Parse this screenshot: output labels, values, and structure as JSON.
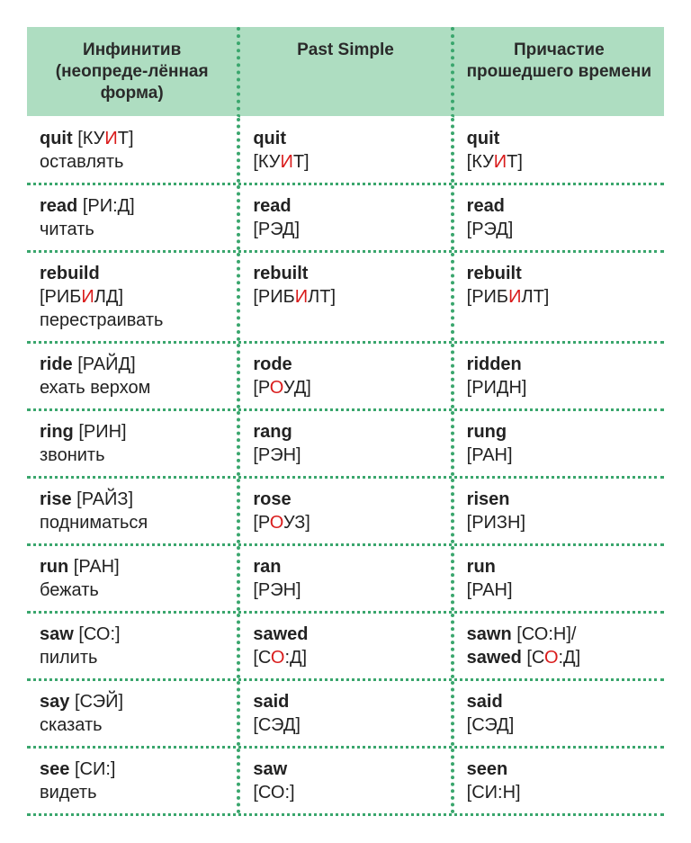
{
  "colors": {
    "header_bg": "#aeddc1",
    "dot_border": "#3aa66d",
    "stress": "#d91c1c",
    "text": "#222222",
    "background": "#ffffff"
  },
  "headers": {
    "col1": "Инфинитив (неопреде-лённая форма)",
    "col2": "Past Simple",
    "col3": "Причастие прошедшего времени"
  },
  "rows": [
    {
      "inf": {
        "word": "quit",
        "pron": [
          [
            "КУ",
            ""
          ],
          [
            "И",
            "stress"
          ],
          [
            "Т",
            ""
          ]
        ],
        "trans": "оставлять"
      },
      "past": {
        "word": "quit",
        "pron": [
          [
            "КУ",
            ""
          ],
          [
            "И",
            "stress"
          ],
          [
            "Т",
            ""
          ]
        ]
      },
      "pp": {
        "word": "quit",
        "pron": [
          [
            "КУ",
            ""
          ],
          [
            "И",
            "stress"
          ],
          [
            "Т",
            ""
          ]
        ]
      }
    },
    {
      "inf": {
        "word": "read",
        "pron": [
          [
            "РИ:Д",
            ""
          ]
        ],
        "trans": "читать"
      },
      "past": {
        "word": "read",
        "pron": [
          [
            "РЭД",
            ""
          ]
        ]
      },
      "pp": {
        "word": "read",
        "pron": [
          [
            "РЭД",
            ""
          ]
        ]
      }
    },
    {
      "inf": {
        "word": "rebuild",
        "pron": [
          [
            "РИБ",
            ""
          ],
          [
            "И",
            "stress"
          ],
          [
            "ЛД",
            ""
          ]
        ],
        "trans": " перестраивать",
        "pron_newline": true
      },
      "past": {
        "word": "rebuilt",
        "pron": [
          [
            "РИБ",
            ""
          ],
          [
            "И",
            "stress"
          ],
          [
            "ЛТ",
            ""
          ]
        ]
      },
      "pp": {
        "word": "rebuilt",
        "pron": [
          [
            "РИБ",
            ""
          ],
          [
            "И",
            "stress"
          ],
          [
            "ЛТ",
            ""
          ]
        ]
      }
    },
    {
      "inf": {
        "word": "ride",
        "pron": [
          [
            "РАЙД",
            ""
          ]
        ],
        "trans": "ехать верхом"
      },
      "past": {
        "word": "rode",
        "pron": [
          [
            "Р",
            ""
          ],
          [
            "О",
            "stress"
          ],
          [
            "УД",
            ""
          ]
        ]
      },
      "pp": {
        "word": "ridden",
        "pron": [
          [
            "РИДН",
            ""
          ]
        ]
      }
    },
    {
      "inf": {
        "word": "ring",
        "pron": [
          [
            "РИН",
            ""
          ]
        ],
        "trans": "звонить"
      },
      "past": {
        "word": "rang",
        "pron": [
          [
            "РЭН",
            ""
          ]
        ]
      },
      "pp": {
        "word": "rung",
        "pron": [
          [
            "РАН",
            ""
          ]
        ]
      }
    },
    {
      "inf": {
        "word": "rise",
        "pron": [
          [
            "РАЙЗ",
            ""
          ]
        ],
        "trans": "подниматься"
      },
      "past": {
        "word": "rose",
        "pron": [
          [
            "Р",
            ""
          ],
          [
            "О",
            "stress"
          ],
          [
            "УЗ",
            ""
          ]
        ]
      },
      "pp": {
        "word": "risen",
        "pron": [
          [
            "РИЗН",
            ""
          ]
        ]
      }
    },
    {
      "inf": {
        "word": "run",
        "pron": [
          [
            "РАН",
            ""
          ]
        ],
        "trans": "бежать"
      },
      "past": {
        "word": "ran",
        "pron": [
          [
            "РЭН",
            ""
          ]
        ]
      },
      "pp": {
        "word": "run",
        "pron": [
          [
            "РАН",
            ""
          ]
        ]
      }
    },
    {
      "inf": {
        "word": "saw",
        "pron": [
          [
            "СО:",
            ""
          ]
        ],
        "trans": "пилить"
      },
      "past": {
        "word": "sawed",
        "pron": [
          [
            "С",
            ""
          ],
          [
            "О",
            "stress"
          ],
          [
            ":Д",
            ""
          ]
        ]
      },
      "pp": {
        "dual": [
          {
            "word": "sawn",
            "pron": [
              [
                "СО:Н",
                ""
              ]
            ]
          },
          {
            "word": "sawed",
            "pron": [
              [
                "С",
                ""
              ],
              [
                "О",
                "stress"
              ],
              [
                ":Д",
                ""
              ]
            ]
          }
        ]
      }
    },
    {
      "inf": {
        "word": "say",
        "pron": [
          [
            "СЭЙ",
            ""
          ]
        ],
        "trans": "сказать"
      },
      "past": {
        "word": "said",
        "pron": [
          [
            "СЭД",
            ""
          ]
        ]
      },
      "pp": {
        "word": "said",
        "pron": [
          [
            "СЭД",
            ""
          ]
        ]
      }
    },
    {
      "inf": {
        "word": "see",
        "pron": [
          [
            "СИ:",
            ""
          ]
        ],
        "trans": "видеть"
      },
      "past": {
        "word": "saw",
        "pron": [
          [
            "СО:",
            ""
          ]
        ]
      },
      "pp": {
        "word": "seen",
        "pron": [
          [
            "СИ:Н",
            ""
          ]
        ]
      }
    }
  ]
}
